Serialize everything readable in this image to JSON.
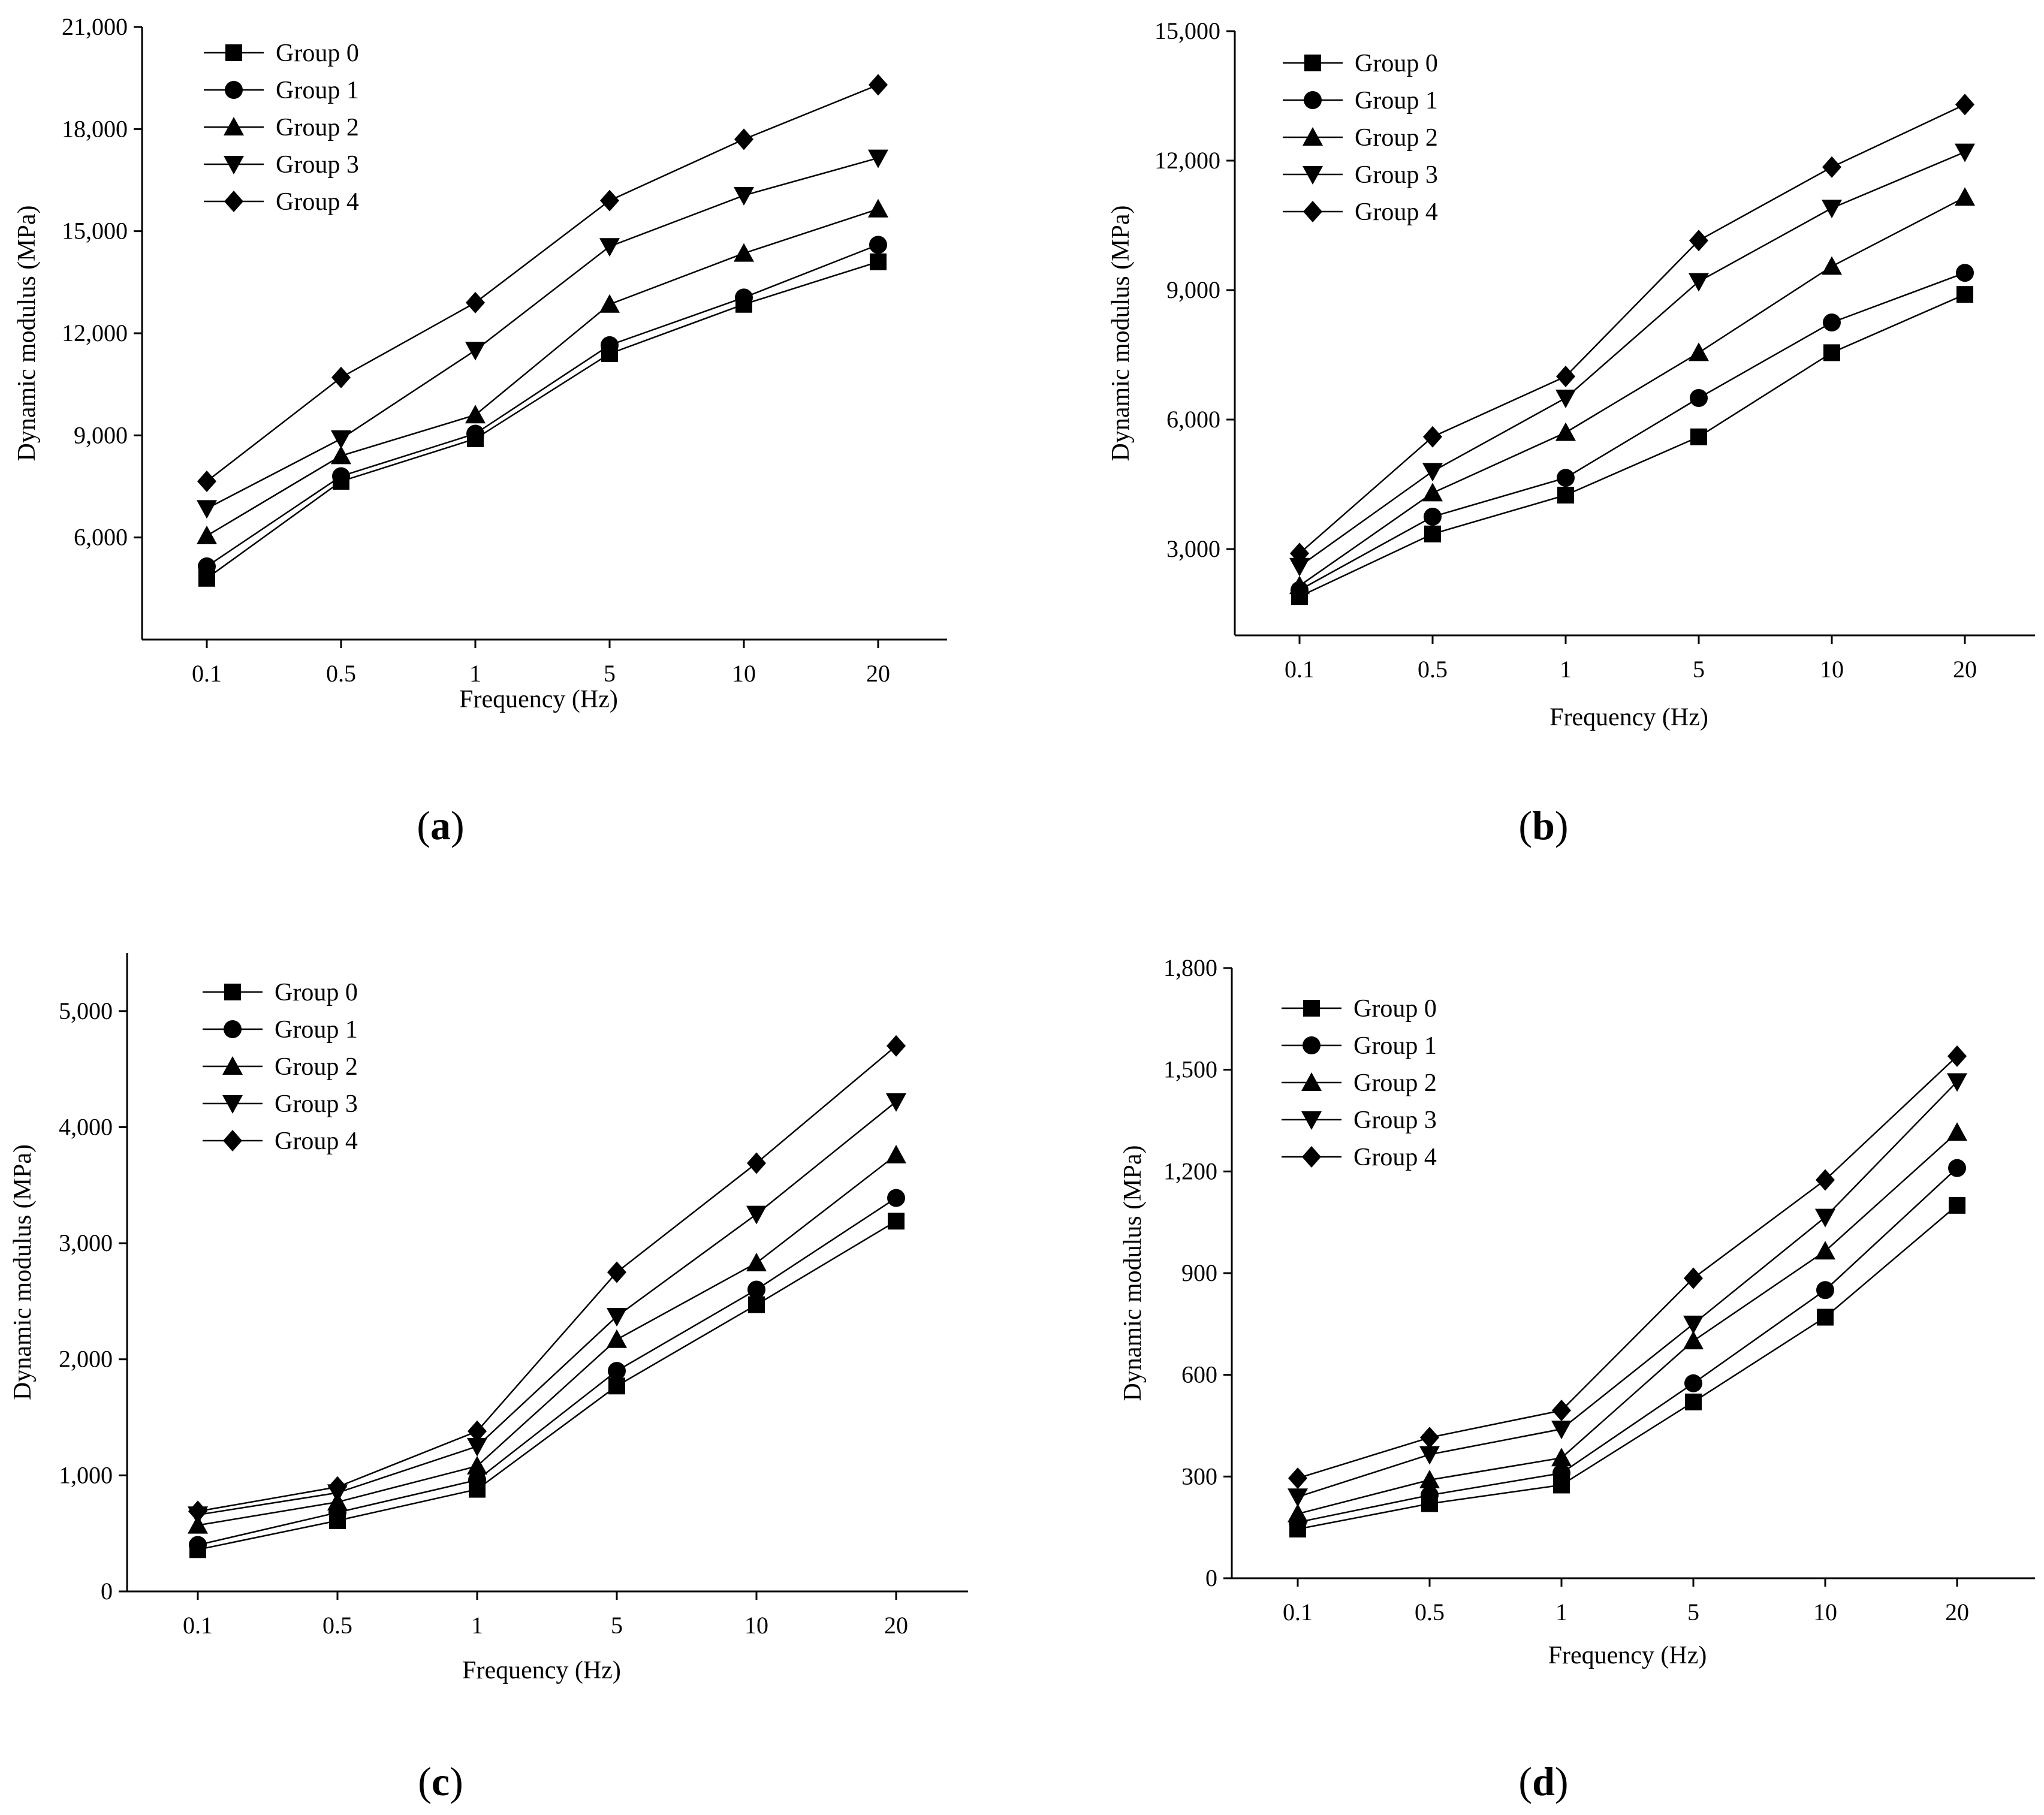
{
  "figure": {
    "panels": [
      "(a)",
      "(b)",
      "(c)",
      "(d)"
    ]
  },
  "chart_data": [
    {
      "type": "line",
      "panel_label": "(a)",
      "xlabel": "Frequency (Hz)",
      "ylabel": "Dynamic modulus (MPa)",
      "categories": [
        "0.1",
        "0.5",
        "1",
        "5",
        "10",
        "20"
      ],
      "ylim": [
        3000,
        21000
      ],
      "yticks": [
        6000,
        9000,
        12000,
        15000,
        18000,
        21000
      ],
      "ytick_labels": [
        "6,000",
        "9,000",
        "12,000",
        "15,000",
        "18,000",
        "21,000"
      ],
      "legend_position": "top-left",
      "series": [
        {
          "name": "Group 0",
          "marker": "square",
          "values": [
            4800,
            7650,
            8900,
            11400,
            12850,
            14100
          ]
        },
        {
          "name": "Group 1",
          "marker": "circle",
          "values": [
            5150,
            7800,
            9050,
            11650,
            13050,
            14600
          ]
        },
        {
          "name": "Group 2",
          "marker": "triangle-up",
          "values": [
            6050,
            8400,
            9600,
            12850,
            14350,
            15650
          ]
        },
        {
          "name": "Group 3",
          "marker": "triangle-down",
          "values": [
            6850,
            8900,
            11500,
            14550,
            16050,
            17150
          ]
        },
        {
          "name": "Group 4",
          "marker": "diamond",
          "values": [
            7650,
            10700,
            12900,
            15900,
            17700,
            19300
          ]
        }
      ]
    },
    {
      "type": "line",
      "panel_label": "(b)",
      "xlabel": "Frequency (Hz)",
      "ylabel": "Dynamic modulus (MPa)",
      "categories": [
        "0.1",
        "0.5",
        "1",
        "5",
        "10",
        "20"
      ],
      "ylim": [
        1000,
        15000
      ],
      "yticks": [
        3000,
        6000,
        9000,
        12000,
        15000
      ],
      "ytick_labels": [
        "3,000",
        "6,000",
        "9,000",
        "12,000",
        "15,000"
      ],
      "legend_position": "top-left",
      "series": [
        {
          "name": "Group 0",
          "marker": "square",
          "values": [
            1900,
            3350,
            4250,
            5600,
            7550,
            8900
          ]
        },
        {
          "name": "Group 1",
          "marker": "circle",
          "values": [
            2050,
            3750,
            4650,
            6500,
            8250,
            9400
          ]
        },
        {
          "name": "Group 2",
          "marker": "triangle-up",
          "values": [
            2150,
            4300,
            5700,
            7550,
            9550,
            11150
          ]
        },
        {
          "name": "Group 3",
          "marker": "triangle-down",
          "values": [
            2600,
            4800,
            6500,
            9200,
            10900,
            12200
          ]
        },
        {
          "name": "Group 4",
          "marker": "diamond",
          "values": [
            2900,
            5600,
            7000,
            10150,
            11850,
            13300
          ]
        }
      ]
    },
    {
      "type": "line",
      "panel_label": "(c)",
      "xlabel": "Frequency (Hz)",
      "ylabel": "Dynamic modulus (MPa)",
      "categories": [
        "0.1",
        "0.5",
        "1",
        "5",
        "10",
        "20"
      ],
      "ylim": [
        0,
        5500
      ],
      "yticks": [
        0,
        1000,
        2000,
        3000,
        4000,
        5000
      ],
      "ytick_labels": [
        "0",
        "1,000",
        "2,000",
        "3,000",
        "4,000",
        "5,000"
      ],
      "legend_position": "top-left",
      "series": [
        {
          "name": "Group 0",
          "marker": "square",
          "values": [
            360,
            610,
            880,
            1770,
            2470,
            3190
          ]
        },
        {
          "name": "Group 1",
          "marker": "circle",
          "values": [
            400,
            680,
            960,
            1900,
            2600,
            3390
          ]
        },
        {
          "name": "Group 2",
          "marker": "triangle-up",
          "values": [
            570,
            770,
            1080,
            2170,
            2830,
            3760
          ]
        },
        {
          "name": "Group 3",
          "marker": "triangle-down",
          "values": [
            660,
            850,
            1250,
            2370,
            3250,
            4220
          ]
        },
        {
          "name": "Group 4",
          "marker": "diamond",
          "values": [
            690,
            900,
            1380,
            2750,
            3690,
            4700
          ]
        }
      ]
    },
    {
      "type": "line",
      "panel_label": "(d)",
      "xlabel": "Frequency (Hz)",
      "ylabel": "Dynamic modulus (MPa)",
      "categories": [
        "0.1",
        "0.5",
        "1",
        "5",
        "10",
        "20"
      ],
      "ylim": [
        0,
        1800
      ],
      "yticks": [
        0,
        300,
        600,
        900,
        1200,
        1500,
        1800
      ],
      "ytick_labels": [
        "0",
        "300",
        "600",
        "900",
        "1,200",
        "1,500",
        "1,800"
      ],
      "legend_position": "top-left",
      "series": [
        {
          "name": "Group 0",
          "marker": "square",
          "values": [
            145,
            220,
            275,
            520,
            770,
            1100
          ]
        },
        {
          "name": "Group 1",
          "marker": "circle",
          "values": [
            165,
            245,
            310,
            575,
            850,
            1210
          ]
        },
        {
          "name": "Group 2",
          "marker": "triangle-up",
          "values": [
            190,
            290,
            355,
            700,
            965,
            1315
          ]
        },
        {
          "name": "Group 3",
          "marker": "triangle-down",
          "values": [
            240,
            365,
            440,
            750,
            1065,
            1465
          ]
        },
        {
          "name": "Group 4",
          "marker": "diamond",
          "values": [
            295,
            415,
            495,
            885,
            1175,
            1540
          ]
        }
      ]
    }
  ]
}
